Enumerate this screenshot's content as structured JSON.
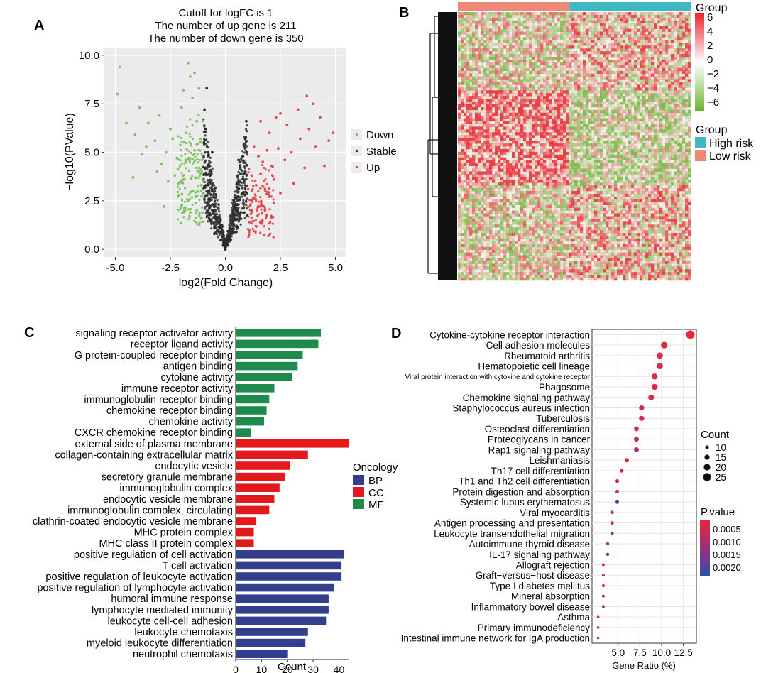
{
  "colors": {
    "panel_bg": "#EBEBEB",
    "grid": "#FFFFFF",
    "down": "#7CC45C",
    "stable": "#2B2B2B",
    "up": "#E8464A",
    "bp": "#333F8C",
    "cc": "#E31A1C",
    "mf": "#1E8A4C",
    "high_risk": "#3FB8C2",
    "low_risk": "#EF8878",
    "heat_high": "#E8262E",
    "heat_mid": "#FFFFFF",
    "heat_low": "#6BB332",
    "pval_low": "#E8263B",
    "pval_high": "#2F4FA8"
  },
  "panels": {
    "a": {
      "letter": "A",
      "title_lines": [
        "Cutoff for logFC is 1",
        "The number of up gene is 211",
        "The number of down gene is 350"
      ]
    },
    "b": {
      "letter": "B",
      "legend_title": "Group",
      "color_keys": [
        "6",
        "4",
        "2",
        "0",
        "−2",
        "−4",
        "−6"
      ],
      "group_legend_title": "Group",
      "groups": [
        "High risk",
        "Low risk"
      ]
    },
    "c": {
      "letter": "C"
    },
    "d": {
      "letter": "D"
    }
  },
  "chart_data": [
    {
      "id": "volcano",
      "type": "scatter",
      "title": "Cutoff for logFC is 1\nThe number of up gene is 211\nThe number of down gene is 350",
      "xlabel": "log2(Fold Change)",
      "ylabel": "−log10(PValue)",
      "xlim": [
        -5.5,
        5.5
      ],
      "ylim": [
        -0.4,
        10.4
      ],
      "xticks": [
        "-5.0",
        "-2.5",
        "0.0",
        "2.5",
        "5.0"
      ],
      "yticks": [
        "0.0",
        "2.5",
        "5.0",
        "7.5",
        "10.0"
      ],
      "xtick_values": [
        -5,
        -2.5,
        0,
        2.5,
        5
      ],
      "ytick_values": [
        0,
        2.5,
        5,
        7.5,
        10
      ],
      "logfc_cutoff": 1,
      "up_count": 211,
      "down_count": 350,
      "legend": [
        "Down",
        "Stable",
        "Up"
      ],
      "series": [
        {
          "name": "Down",
          "points": [
            [
              -4.8,
              9.4
            ],
            [
              -4.9,
              8.0
            ],
            [
              -4.5,
              6.5
            ],
            [
              -4.1,
              5.9
            ],
            [
              -3.8,
              4.9
            ],
            [
              -3.6,
              5.3
            ],
            [
              -3.5,
              6.5
            ],
            [
              -3.2,
              5.6
            ],
            [
              -3.0,
              6.9
            ],
            [
              -2.9,
              4.4
            ],
            [
              -2.7,
              5.0
            ],
            [
              -2.5,
              6.2
            ],
            [
              -2.3,
              3.8
            ],
            [
              -2.2,
              4.7
            ],
            [
              -2.0,
              7.3
            ],
            [
              -1.9,
              8.2
            ],
            [
              -1.8,
              6.0
            ],
            [
              -1.7,
              9.6
            ],
            [
              -1.6,
              8.9
            ],
            [
              -1.5,
              7.8
            ],
            [
              -1.4,
              9.1
            ],
            [
              -1.3,
              6.6
            ],
            [
              -1.2,
              4.2
            ],
            [
              -1.1,
              3.3
            ],
            [
              -1.5,
              3.0
            ],
            [
              -1.7,
              2.5
            ],
            [
              -2.1,
              2.8
            ],
            [
              -2.6,
              3.5
            ],
            [
              -3.1,
              4.0
            ],
            [
              -1.3,
              2.0
            ],
            [
              -1.1,
              1.6
            ],
            [
              -1.4,
              5.1
            ],
            [
              -1.8,
              4.6
            ],
            [
              -2.4,
              5.7
            ],
            [
              -3.9,
              7.3
            ],
            [
              -4.2,
              3.7
            ],
            [
              -1.2,
              8.3
            ],
            [
              -1.6,
              1.9
            ],
            [
              -2.8,
              2.2
            ],
            [
              -1.9,
              3.6
            ]
          ]
        },
        {
          "name": "Stable",
          "points": [
            [
              -0.9,
              6.2
            ],
            [
              -0.8,
              5.0
            ],
            [
              -0.7,
              3.8
            ],
            [
              -0.6,
              3.0
            ],
            [
              -0.5,
              2.2
            ],
            [
              -0.4,
              1.5
            ],
            [
              -0.3,
              0.9
            ],
            [
              -0.2,
              0.5
            ],
            [
              -0.1,
              0.2
            ],
            [
              0.0,
              0.0
            ],
            [
              0.1,
              0.2
            ],
            [
              0.2,
              0.5
            ],
            [
              0.3,
              0.9
            ],
            [
              0.4,
              1.5
            ],
            [
              0.5,
              2.3
            ],
            [
              0.6,
              3.1
            ],
            [
              0.7,
              3.9
            ],
            [
              0.8,
              4.8
            ],
            [
              0.9,
              5.7
            ],
            [
              -0.9,
              4.2
            ],
            [
              -0.8,
              3.0
            ],
            [
              0.9,
              4.0
            ],
            [
              0.8,
              2.9
            ],
            [
              -0.95,
              7.2
            ],
            [
              0.95,
              6.6
            ],
            [
              -0.7,
              1.8
            ],
            [
              0.7,
              1.9
            ],
            [
              -0.5,
              0.8
            ],
            [
              0.5,
              0.9
            ],
            [
              -0.85,
              8.3
            ],
            [
              0.85,
              3.5
            ],
            [
              -0.6,
              5.0
            ],
            [
              0.6,
              4.6
            ]
          ]
        },
        {
          "name": "Up",
          "points": [
            [
              1.1,
              1.4
            ],
            [
              1.2,
              2.0
            ],
            [
              1.3,
              2.6
            ],
            [
              1.4,
              3.3
            ],
            [
              1.5,
              2.2
            ],
            [
              1.6,
              3.9
            ],
            [
              1.7,
              4.5
            ],
            [
              1.8,
              3.1
            ],
            [
              1.9,
              5.1
            ],
            [
              2.0,
              6.0
            ],
            [
              2.1,
              4.3
            ],
            [
              2.2,
              3.6
            ],
            [
              2.3,
              6.8
            ],
            [
              2.4,
              5.2
            ],
            [
              2.5,
              2.9
            ],
            [
              2.7,
              4.6
            ],
            [
              2.8,
              6.4
            ],
            [
              3.0,
              5.0
            ],
            [
              3.1,
              3.4
            ],
            [
              3.3,
              7.2
            ],
            [
              3.4,
              5.7
            ],
            [
              3.6,
              4.2
            ],
            [
              3.8,
              6.2
            ],
            [
              4.0,
              7.5
            ],
            [
              4.1,
              5.3
            ],
            [
              4.3,
              6.8
            ],
            [
              4.5,
              4.3
            ],
            [
              4.7,
              5.6
            ],
            [
              4.9,
              6.0
            ],
            [
              1.2,
              3.8
            ],
            [
              1.5,
              4.8
            ],
            [
              1.3,
              5.3
            ],
            [
              1.8,
              2.0
            ],
            [
              2.5,
              7.0
            ],
            [
              3.7,
              7.9
            ],
            [
              1.6,
              6.6
            ],
            [
              2.2,
              2.4
            ]
          ]
        }
      ]
    },
    {
      "id": "heatmap",
      "type": "heatmap",
      "colorbar_range": [
        -6,
        6
      ],
      "column_groups": [
        {
          "name": "Low risk",
          "fraction": 0.48
        },
        {
          "name": "High risk",
          "fraction": 0.52
        }
      ],
      "has_row_dendrogram": true
    },
    {
      "id": "go-enrichment",
      "type": "bar",
      "orientation": "horizontal",
      "xlabel": "Count",
      "xlim": [
        0,
        44
      ],
      "xticks": [
        "0",
        "10",
        "20",
        "30",
        "40"
      ],
      "xtick_values": [
        0,
        10,
        20,
        30,
        40
      ],
      "legend_title": "Oncology",
      "legend": [
        "BP",
        "CC",
        "MF"
      ],
      "categories": [
        "signaling receptor activator activity",
        "receptor ligand activity",
        "G protein-coupled receptor binding",
        "antigen binding",
        "cytokine activity",
        "immune receptor activity",
        "immunoglobulin receptor binding",
        "chemokine receptor binding",
        "chemokine activity",
        "CXCR chemokine receptor binding",
        "external side of plasma membrane",
        "collagen-containing extracellular matrix",
        "endocytic vesicle",
        "secretory granule membrane",
        "immunoglobulin complex",
        "endocytic vesicle membrane",
        "immunoglobulin complex, circulating",
        "clathrin-coated endocytic vesicle membrane",
        "MHC protein complex",
        "MHC class II protein complex",
        "positive regulation of cell activation",
        "T cell activation",
        "positive regulation of leukocyte activation",
        "positive regulation of lymphocyte activation",
        "humoral immune response",
        "lymphocyte mediated immunity",
        "leukocyte cell-cell adhesion",
        "leukocyte chemotaxis",
        "myeloid leukocyte differentiation",
        "neutrophil chemotaxis"
      ],
      "values": [
        33,
        32,
        26,
        24,
        22,
        15,
        13,
        12,
        11,
        6,
        44,
        28,
        21,
        19,
        17,
        15,
        13,
        8,
        7,
        7,
        42,
        41,
        41,
        38,
        36,
        36,
        35,
        28,
        27,
        20
      ],
      "groups": [
        "MF",
        "MF",
        "MF",
        "MF",
        "MF",
        "MF",
        "MF",
        "MF",
        "MF",
        "MF",
        "CC",
        "CC",
        "CC",
        "CC",
        "CC",
        "CC",
        "CC",
        "CC",
        "CC",
        "CC",
        "BP",
        "BP",
        "BP",
        "BP",
        "BP",
        "BP",
        "BP",
        "BP",
        "BP",
        "BP"
      ]
    },
    {
      "id": "kegg-enrichment",
      "type": "scatter",
      "subtype": "dotplot",
      "xlabel": "Gene Ratio (%)",
      "xlim": [
        2.0,
        14.0
      ],
      "xticks": [
        "5.0",
        "7.5",
        "10.0",
        "12.5"
      ],
      "xtick_values": [
        5.0,
        7.5,
        10.0,
        12.5
      ],
      "size_legend_title": "Count",
      "size_legend": [
        "10",
        "15",
        "20",
        "25"
      ],
      "size_legend_values": [
        10,
        15,
        20,
        25
      ],
      "color_legend_title": "P.value",
      "color_legend": [
        "0.0005",
        "0.0010",
        "0.0015",
        "0.0020"
      ],
      "color_legend_values": [
        0.0005,
        0.001,
        0.0015,
        0.002
      ],
      "pvalue_range": [
        0.0,
        0.0023
      ],
      "categories": [
        "Cytokine-cytokine receptor interaction",
        "Cell adhesion molecules",
        "Rheumatoid arthritis",
        "Hematopoietic cell lineage",
        "Viral protein interaction with cytokine and cytokine receptor",
        "Phagosome",
        "Chemokine signaling pathway",
        "Staphylococcus aureus infection",
        "Tuberculosis",
        "Osteoclast differentiation",
        "Proteoglycans in cancer",
        "Rap1 signaling pathway",
        "Leishmaniasis",
        "Th17 cell differentiation",
        "Th1 and Th2 cell differentiation",
        "Protein digestion and absorption",
        "Systemic lupus erythematosus",
        "Viral myocarditis",
        "Antigen processing and presentation",
        "Leukocyte transendothelial migration",
        "Autoimmune thyroid disease",
        "IL-17 signaling pathway",
        "Allograft rejection",
        "Graft−versus−host disease",
        "Type I diabetes mellitus",
        "Mineral absorption",
        "Inflammatory bowel disease",
        "Asthma",
        "Primary immunodeficiency",
        "Intestinal immune network for IgA production"
      ],
      "gene_ratio": [
        13.3,
        10.3,
        9.8,
        9.8,
        9.2,
        9.2,
        8.8,
        7.7,
        7.7,
        7.1,
        7.1,
        7.1,
        6.0,
        5.4,
        4.9,
        4.9,
        4.9,
        4.3,
        4.3,
        4.3,
        3.8,
        3.8,
        3.3,
        3.3,
        3.3,
        3.3,
        3.3,
        2.7,
        2.7,
        2.7
      ],
      "count": [
        27,
        20,
        19,
        19,
        18,
        18,
        17,
        15,
        15,
        14,
        14,
        14,
        12,
        11,
        10,
        10,
        10,
        9,
        9,
        9,
        8,
        8,
        7,
        7,
        7,
        7,
        7,
        6,
        6,
        6
      ],
      "p_value": [
        0.0,
        0.0001,
        0.0001,
        0.0001,
        0.0001,
        0.0001,
        0.0002,
        0.0002,
        0.0002,
        0.0003,
        0.0008,
        0.001,
        0.0003,
        0.0003,
        0.0003,
        0.0004,
        0.0018,
        0.0004,
        0.0006,
        0.0019,
        0.0005,
        0.0021,
        0.0003,
        0.0003,
        0.0004,
        0.0012,
        0.0013,
        0.0006,
        0.001,
        0.0014
      ]
    }
  ]
}
